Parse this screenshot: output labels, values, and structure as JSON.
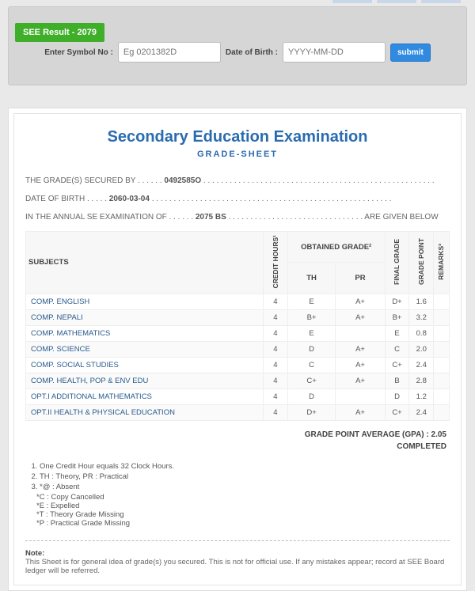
{
  "lookup": {
    "badge": "SEE Result - 2079",
    "symbol_label": "Enter Symbol No :",
    "symbol_placeholder": "Eg 0201382D",
    "dob_label": "Date of Birth :",
    "dob_placeholder": "YYYY-MM-DD",
    "submit": "submit"
  },
  "sheet": {
    "title": "Secondary Education Examination",
    "subtitle": "GRADE-SHEET",
    "line1_prefix": "THE GRADE(S) SECURED BY",
    "symbol_no": "0492585O",
    "line2_prefix": "DATE OF BIRTH",
    "dob": "2060-03-04",
    "line3_prefix": "IN THE ANNUAL SE EXAMINATION OF",
    "year": "2075 BS",
    "line3_suffix": "ARE GIVEN BELOW",
    "headers": {
      "subjects": "SUBJECTS",
      "credit": "CREDIT HOURS¹",
      "obtained": "OBTAINED GRADE²",
      "th": "TH",
      "pr": "PR",
      "final": "FINAL GRADE",
      "gp": "GRADE POINT",
      "remarks": "REMARKS³"
    },
    "rows": [
      {
        "subj": "COMP. ENGLISH",
        "ch": "4",
        "th": "E",
        "pr": "A+",
        "fg": "D+",
        "gp": "1.6",
        "rem": ""
      },
      {
        "subj": "COMP. NEPALI",
        "ch": "4",
        "th": "B+",
        "pr": "A+",
        "fg": "B+",
        "gp": "3.2",
        "rem": ""
      },
      {
        "subj": "COMP. MATHEMATICS",
        "ch": "4",
        "th": "E",
        "pr": "",
        "fg": "E",
        "gp": "0.8",
        "rem": ""
      },
      {
        "subj": "COMP. SCIENCE",
        "ch": "4",
        "th": "D",
        "pr": "A+",
        "fg": "C",
        "gp": "2.0",
        "rem": ""
      },
      {
        "subj": "COMP. SOCIAL STUDIES",
        "ch": "4",
        "th": "C",
        "pr": "A+",
        "fg": "C+",
        "gp": "2.4",
        "rem": ""
      },
      {
        "subj": "COMP. HEALTH, POP & ENV EDU",
        "ch": "4",
        "th": "C+",
        "pr": "A+",
        "fg": "B",
        "gp": "2.8",
        "rem": ""
      },
      {
        "subj": "OPT.I ADDITIONAL MATHEMATICS",
        "ch": "4",
        "th": "D",
        "pr": "",
        "fg": "D",
        "gp": "1.2",
        "rem": ""
      },
      {
        "subj": "OPT.II HEALTH & PHYSICAL EDUCATION",
        "ch": "4",
        "th": "D+",
        "pr": "A+",
        "fg": "C+",
        "gp": "2.4",
        "rem": ""
      }
    ],
    "gpa_label": "GRADE POINT AVERAGE (GPA) : ",
    "gpa": "2.05",
    "status": "COMPLETED",
    "notes": {
      "n1": "One Credit Hour equals 32 Clock Hours.",
      "n2": "TH : Theory, PR : Practical",
      "n3": "*@ : Absent",
      "sub": [
        "*C : Copy Cancelled",
        "*E : Expelled",
        "*T : Theory Grade Missing",
        "*P : Practical Grade Missing"
      ]
    },
    "footnote_title": "Note:",
    "footnote": "This Sheet is for general idea of grade(s) you secured. This is not for official use. If any mistakes appear; record at SEE Board ledger will be referred."
  }
}
